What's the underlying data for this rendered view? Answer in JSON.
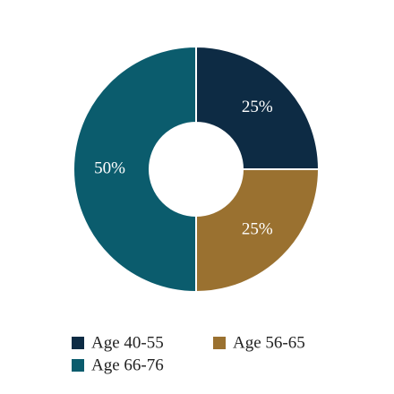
{
  "chart_data": {
    "type": "donut",
    "categories": [
      "Age 40-55",
      "Age 56-65",
      "Age 66-76"
    ],
    "values": [
      25,
      25,
      50
    ],
    "value_labels": [
      "25%",
      "25%",
      "50%"
    ],
    "colors": [
      "#0d2b44",
      "#9a7130",
      "#0b5c6d"
    ]
  }
}
